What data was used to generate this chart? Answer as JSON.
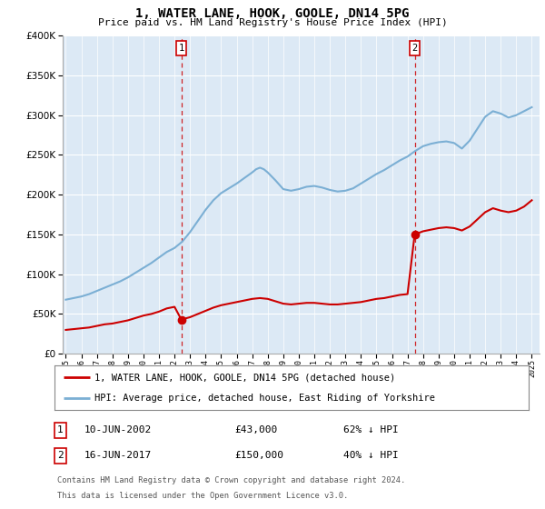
{
  "title": "1, WATER LANE, HOOK, GOOLE, DN14 5PG",
  "subtitle": "Price paid vs. HM Land Registry's House Price Index (HPI)",
  "red_label": "1, WATER LANE, HOOK, GOOLE, DN14 5PG (detached house)",
  "blue_label": "HPI: Average price, detached house, East Riding of Yorkshire",
  "sale1_date": 2002.44,
  "sale1_price": 43000,
  "sale1_label": "10-JUN-2002",
  "sale1_pct": "62% ↓ HPI",
  "sale2_date": 2017.46,
  "sale2_price": 150000,
  "sale2_label": "16-JUN-2017",
  "sale2_pct": "40% ↓ HPI",
  "footnote1": "Contains HM Land Registry data © Crown copyright and database right 2024.",
  "footnote2": "This data is licensed under the Open Government Licence v3.0.",
  "ylim": [
    0,
    400000
  ],
  "xlim_start": 1994.8,
  "xlim_end": 2025.5,
  "bg_color": "#dce9f5",
  "red_color": "#cc0000",
  "blue_color": "#7bafd4",
  "marker_color": "#cc0000",
  "hpi_years": [
    1995,
    1995.5,
    1996,
    1996.5,
    1997,
    1997.5,
    1998,
    1998.5,
    1999,
    1999.5,
    2000,
    2000.5,
    2001,
    2001.5,
    2002,
    2002.5,
    2003,
    2003.5,
    2004,
    2004.5,
    2005,
    2005.5,
    2006,
    2006.5,
    2007,
    2007.25,
    2007.5,
    2007.75,
    2008,
    2008.5,
    2009,
    2009.5,
    2010,
    2010.5,
    2011,
    2011.5,
    2012,
    2012.5,
    2013,
    2013.5,
    2014,
    2014.5,
    2015,
    2015.5,
    2016,
    2016.5,
    2017,
    2017.5,
    2018,
    2018.5,
    2019,
    2019.5,
    2020,
    2020.5,
    2021,
    2021.5,
    2022,
    2022.5,
    2023,
    2023.5,
    2024,
    2024.5,
    2025
  ],
  "hpi_values": [
    68000,
    70000,
    72000,
    75000,
    79000,
    83000,
    87000,
    91000,
    96000,
    102000,
    108000,
    114000,
    121000,
    128000,
    133000,
    141000,
    153000,
    167000,
    181000,
    193000,
    202000,
    208000,
    214000,
    221000,
    228000,
    232000,
    234000,
    232000,
    228000,
    218000,
    207000,
    205000,
    207000,
    210000,
    211000,
    209000,
    206000,
    204000,
    205000,
    208000,
    214000,
    220000,
    226000,
    231000,
    237000,
    243000,
    248000,
    255000,
    261000,
    264000,
    266000,
    267000,
    265000,
    258000,
    268000,
    283000,
    298000,
    305000,
    302000,
    297000,
    300000,
    305000,
    310000
  ],
  "red_years_p1": [
    1995,
    1995.5,
    1996,
    1996.5,
    1997,
    1997.5,
    1998,
    1998.5,
    1999,
    1999.5,
    2000,
    2000.5,
    2001,
    2001.5,
    2002,
    2002.44
  ],
  "red_values_p1": [
    30000,
    31000,
    32000,
    33000,
    35000,
    37000,
    38000,
    40000,
    42000,
    45000,
    48000,
    50000,
    53000,
    57000,
    59000,
    43000
  ],
  "red_years_p2": [
    2002.44,
    2003,
    2003.5,
    2004,
    2004.5,
    2005,
    2005.5,
    2006,
    2006.5,
    2007,
    2007.5,
    2008,
    2008.5,
    2009,
    2009.5,
    2010,
    2010.5,
    2011,
    2011.5,
    2012,
    2012.5,
    2013,
    2013.5,
    2014,
    2014.5,
    2015,
    2015.5,
    2016,
    2016.5,
    2017,
    2017.46
  ],
  "red_values_p2": [
    43000,
    46000,
    50000,
    54000,
    58000,
    61000,
    63000,
    65000,
    67000,
    69000,
    70000,
    69000,
    66000,
    63000,
    62000,
    63000,
    64000,
    64000,
    63000,
    62000,
    62000,
    63000,
    64000,
    65000,
    67000,
    69000,
    70000,
    72000,
    74000,
    75000,
    150000
  ],
  "red_years_p3": [
    2017.46,
    2018,
    2018.5,
    2019,
    2019.5,
    2020,
    2020.5,
    2021,
    2021.5,
    2022,
    2022.5,
    2023,
    2023.5,
    2024,
    2024.5,
    2025
  ],
  "red_values_p3": [
    150000,
    154000,
    156000,
    158000,
    159000,
    158000,
    155000,
    160000,
    169000,
    178000,
    183000,
    180000,
    178000,
    180000,
    185000,
    193000
  ]
}
